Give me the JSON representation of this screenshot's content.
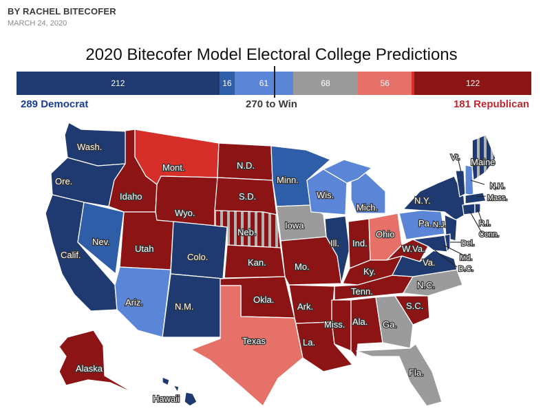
{
  "header": {
    "byline": "BY RACHEL BITECOFER",
    "date": "MARCH 24, 2020"
  },
  "title": "2020 Bitecofer Model Electoral College Predictions",
  "colors": {
    "safe_dem": "#1f3a70",
    "likely_dem": "#2f5ea8",
    "lean_dem": "#5b85d6",
    "tossup": "#9b9b9b",
    "lean_rep": "#e57168",
    "likely_rep": "#d62f2a",
    "safe_rep": "#8c1414",
    "dem_text": "#1a3c9a",
    "rep_text": "#c0262d"
  },
  "bar": [
    {
      "label": "212",
      "value": 212,
      "color": "#1f3a70"
    },
    {
      "label": "16",
      "value": 16,
      "color": "#2f5ea8"
    },
    {
      "label": "61",
      "value": 61,
      "color": "#5b85d6"
    },
    {
      "label": "68",
      "value": 68,
      "color": "#9b9b9b"
    },
    {
      "label": "56",
      "value": 56,
      "color": "#e57168"
    },
    {
      "label": "3",
      "value": 3,
      "color": "#d62f2a"
    },
    {
      "label": "122",
      "value": 122,
      "color": "#8c1414"
    }
  ],
  "summary": {
    "dem": "289 Democrat",
    "win": "270 to Win",
    "rep": "181 Republican"
  },
  "states": {
    "WA": "Wash.",
    "OR": "Ore.",
    "CA": "Calif.",
    "NV": "Nev.",
    "ID": "Idaho",
    "MT": "Mont.",
    "WY": "Wyo.",
    "UT": "Utah",
    "AZ": "Ariz.",
    "CO": "Colo.",
    "NM": "N.M.",
    "ND": "N.D.",
    "SD": "S.D.",
    "NE": "Neb.",
    "KS": "Kan.",
    "OK": "Okla.",
    "TX": "Texas",
    "MN": "Minn.",
    "IA": "Iowa",
    "MO": "Mo.",
    "AR": "Ark.",
    "LA": "La.",
    "WI": "Wis.",
    "IL": "Ill.",
    "MI": "Mich.",
    "IN": "Ind.",
    "OH": "Ohio",
    "KY": "Ky.",
    "TN": "Tenn.",
    "MS": "Miss.",
    "AL": "Ala.",
    "GA": "Ga.",
    "FL": "Fla.",
    "SC": "S.C.",
    "NC": "N.C.",
    "VA": "Va.",
    "WV": "W.Va.",
    "PA": "Pa.",
    "NY": "N.Y.",
    "NJ": "N.J.",
    "VT": "Vt.",
    "ME": "Maine",
    "NH": "N.H.",
    "MA": "Mass.",
    "RI": "R.I.",
    "CT": "Conn.",
    "DE": "Del.",
    "MD": "Md.",
    "DC": "D.C.",
    "AK": "Alaska",
    "HI": "Hawaii"
  }
}
